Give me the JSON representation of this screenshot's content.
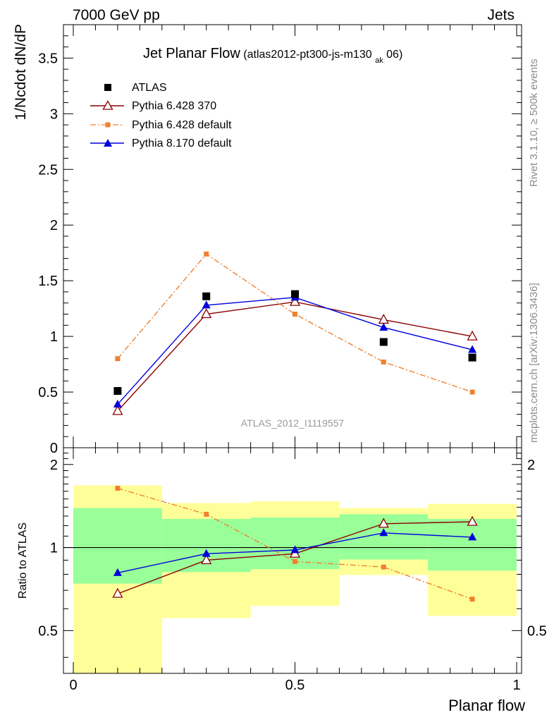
{
  "header": {
    "left": "7000 GeV pp",
    "right": "Jets"
  },
  "side": {
    "rivet": "Rivet 3.1.10, ≥ 500k events",
    "mcplots": "mcplots.cern.ch [arXiv:1306.3436]"
  },
  "chart_data": [
    {
      "type": "scatter",
      "panel": "main",
      "title": "Jet Planar Flow",
      "subtitle_pre": "(atlas2012-pt300-js-m130",
      "subtitle_sub": "ak",
      "subtitle_post": "06)",
      "ylabel": "1/Ncdot dN/dP",
      "watermark": "ATLAS_2012_I1119557",
      "xlim": [
        0,
        1
      ],
      "ylim": [
        0,
        3.8
      ],
      "yticks": [
        0,
        0.5,
        1,
        1.5,
        2,
        2.5,
        3,
        3.5
      ],
      "ytick_labels": [
        "0",
        "0.5",
        "1",
        "1.5",
        "2",
        "2.5",
        "3",
        "3.5"
      ],
      "legend_position": "top-left",
      "series": [
        {
          "name": "ATLAS",
          "color": "#000000",
          "marker": "square",
          "line": "none",
          "x": [
            0.1,
            0.3,
            0.5,
            0.7,
            0.9
          ],
          "y": [
            0.51,
            1.36,
            1.38,
            0.95,
            0.81
          ]
        },
        {
          "name": "Pythia 6.428 370",
          "color": "#8b0000",
          "marker": "open-triangle",
          "line": "solid",
          "x": [
            0.1,
            0.3,
            0.5,
            0.7,
            0.9
          ],
          "y": [
            0.33,
            1.2,
            1.31,
            1.15,
            1.0
          ]
        },
        {
          "name": "Pythia 6.428 default",
          "color": "#f08030",
          "marker": "small-square",
          "line": "dashdot",
          "x": [
            0.1,
            0.3,
            0.5,
            0.7,
            0.9
          ],
          "y": [
            0.8,
            1.74,
            1.2,
            0.77,
            0.5
          ]
        },
        {
          "name": "Pythia 8.170 default",
          "color": "#0000dd",
          "marker": "filled-triangle",
          "line": "solid",
          "x": [
            0.1,
            0.3,
            0.5,
            0.7,
            0.9
          ],
          "y": [
            0.39,
            1.28,
            1.35,
            1.08,
            0.88
          ]
        }
      ]
    },
    {
      "type": "scatter",
      "panel": "ratio",
      "ylabel": "Ratio to ATLAS",
      "xlabel": "Planar flow",
      "xlim": [
        0,
        1
      ],
      "ylim": [
        0.35,
        2.3
      ],
      "yscale": "log",
      "yticks": [
        0.5,
        1,
        2
      ],
      "ytick_labels": [
        "0.5",
        "1",
        "2"
      ],
      "xticks": [
        0,
        0.5,
        1
      ],
      "xtick_labels": [
        "0",
        "0.5",
        "1"
      ],
      "reference_line": 1,
      "bands": [
        {
          "x0": 0.0,
          "x1": 0.2,
          "green": [
            0.74,
            1.39
          ],
          "yellow": [
            0.35,
            1.68
          ]
        },
        {
          "x0": 0.2,
          "x1": 0.4,
          "green": [
            0.815,
            1.27
          ],
          "yellow": [
            0.555,
            1.45
          ]
        },
        {
          "x0": 0.4,
          "x1": 0.6,
          "green": [
            0.835,
            1.285
          ],
          "yellow": [
            0.615,
            1.47
          ]
        },
        {
          "x0": 0.6,
          "x1": 0.8,
          "green": [
            0.905,
            1.32
          ],
          "yellow": [
            0.795,
            1.39
          ]
        },
        {
          "x0": 0.8,
          "x1": 1.0,
          "green": [
            0.825,
            1.27
          ],
          "yellow": [
            0.565,
            1.44
          ]
        }
      ],
      "series": [
        {
          "name": "Pythia 6.428 370",
          "color": "#8b0000",
          "marker": "open-triangle",
          "line": "solid",
          "x": [
            0.1,
            0.3,
            0.5,
            0.7,
            0.9
          ],
          "y": [
            0.68,
            0.9,
            0.95,
            1.22,
            1.24
          ]
        },
        {
          "name": "Pythia 6.428 default",
          "color": "#f08030",
          "marker": "small-square",
          "line": "dashdot",
          "x": [
            0.1,
            0.3,
            0.5,
            0.7,
            0.9
          ],
          "y": [
            1.64,
            1.32,
            0.89,
            0.85,
            0.65
          ]
        },
        {
          "name": "Pythia 8.170 default",
          "color": "#0000dd",
          "marker": "filled-triangle",
          "line": "solid",
          "x": [
            0.1,
            0.3,
            0.5,
            0.7,
            0.9
          ],
          "y": [
            0.81,
            0.95,
            0.98,
            1.13,
            1.09
          ]
        }
      ]
    }
  ]
}
